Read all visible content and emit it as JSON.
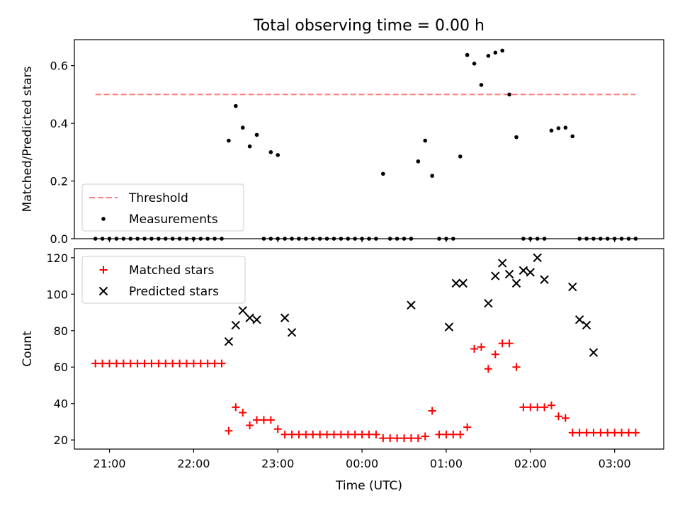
{
  "figure": {
    "title": "Total observing time = 0.00 h",
    "xlabel": "Time (UTC)",
    "colors": {
      "threshold": "#ff7f7f",
      "measurements": "#000000",
      "matched": "#ff0000",
      "predicted": "#000000"
    }
  },
  "chart_data": [
    {
      "type": "scatter",
      "panel": "top",
      "ylabel": "Matched/Predicted stars",
      "ylim": [
        0,
        0.69
      ],
      "yticks": [
        0.0,
        0.2,
        0.4,
        0.6
      ],
      "ytick_labels": [
        "0.0",
        "0.2",
        "0.4",
        "0.6"
      ],
      "xlim": [
        "20:35",
        "03:35"
      ],
      "xticks": [
        "21:00",
        "22:00",
        "23:00",
        "00:00",
        "01:00",
        "02:00",
        "03:00"
      ],
      "legend": {
        "placement": "lower-left",
        "entries": [
          "Threshold",
          "Measurements"
        ]
      },
      "threshold": {
        "name": "Threshold",
        "y": 0.5,
        "x": [
          "20:50",
          "03:15"
        ]
      },
      "series": [
        {
          "name": "Measurements",
          "x": [
            "20:50",
            "20:55",
            "21:00",
            "21:05",
            "21:10",
            "21:15",
            "21:20",
            "21:25",
            "21:30",
            "21:35",
            "21:40",
            "21:45",
            "21:50",
            "21:55",
            "22:00",
            "22:05",
            "22:10",
            "22:15",
            "22:20",
            "22:25",
            "22:30",
            "22:35",
            "22:40",
            "22:45",
            "22:50",
            "22:55",
            "23:00",
            "23:05",
            "23:10",
            "23:15",
            "23:20",
            "23:25",
            "23:30",
            "23:35",
            "23:40",
            "23:45",
            "23:50",
            "23:55",
            "00:00",
            "00:05",
            "00:10",
            "00:15",
            "00:20",
            "00:25",
            "00:30",
            "00:35",
            "00:40",
            "00:45",
            "00:50",
            "00:55",
            "01:00",
            "01:05",
            "01:10",
            "01:15",
            "01:20",
            "01:25",
            "01:30",
            "01:35",
            "01:40",
            "01:45",
            "01:50",
            "01:55",
            "02:00",
            "02:05",
            "02:10",
            "02:15",
            "02:20",
            "02:25",
            "02:30",
            "02:35",
            "02:40",
            "02:45",
            "02:50",
            "02:55",
            "03:00",
            "03:05",
            "03:10",
            "03:15",
            "22:55",
            "23:00"
          ],
          "y": [
            0,
            0,
            0,
            0,
            0,
            0,
            0,
            0,
            0,
            0,
            0,
            0,
            0,
            0,
            0,
            0,
            0,
            0,
            0,
            0.34,
            0.46,
            0.385,
            0.32,
            0.36,
            0,
            0.3,
            0.29,
            0,
            0,
            0,
            0,
            0,
            0,
            0,
            0,
            0,
            0,
            0,
            0,
            0,
            0,
            0.225,
            0,
            0,
            0,
            0,
            0.268,
            0.34,
            0.218,
            0,
            0,
            0,
            0.285,
            0.637,
            0.607,
            0.533,
            0.634,
            0.645,
            0.652,
            0.5,
            0.352,
            0,
            0,
            0,
            0,
            0.375,
            0.383,
            0.385,
            0.355,
            0,
            0,
            0,
            0,
            0,
            0,
            0,
            0,
            0,
            0,
            0
          ]
        }
      ]
    },
    {
      "type": "scatter",
      "panel": "bottom",
      "ylabel": "Count",
      "ylim": [
        15,
        125
      ],
      "yticks": [
        20,
        40,
        60,
        80,
        100,
        120
      ],
      "ytick_labels": [
        "20",
        "40",
        "60",
        "80",
        "100",
        "120"
      ],
      "xlim": [
        "20:35",
        "03:35"
      ],
      "xticks": [
        "21:00",
        "22:00",
        "23:00",
        "00:00",
        "01:00",
        "02:00",
        "03:00"
      ],
      "xtick_labels": [
        "21:00",
        "22:00",
        "23:00",
        "00:00",
        "01:00",
        "02:00",
        "03:00"
      ],
      "legend": {
        "placement": "upper-left",
        "entries": [
          "Matched stars",
          "Predicted stars"
        ]
      },
      "series": [
        {
          "name": "Matched stars",
          "x": [
            "20:50",
            "20:55",
            "21:00",
            "21:05",
            "21:10",
            "21:15",
            "21:20",
            "21:25",
            "21:30",
            "21:35",
            "21:40",
            "21:45",
            "21:50",
            "21:55",
            "22:00",
            "22:05",
            "22:10",
            "22:15",
            "22:20",
            "22:25",
            "22:30",
            "22:35",
            "22:40",
            "22:45",
            "22:50",
            "22:55",
            "23:00",
            "23:05",
            "23:10",
            "23:15",
            "23:20",
            "23:25",
            "23:30",
            "23:35",
            "23:40",
            "23:45",
            "23:50",
            "23:55",
            "00:00",
            "00:05",
            "00:10",
            "00:15",
            "00:20",
            "00:25",
            "00:30",
            "00:35",
            "00:40",
            "00:45",
            "00:50",
            "00:55",
            "01:00",
            "01:05",
            "01:10",
            "01:15",
            "01:20",
            "01:25",
            "01:30",
            "01:35",
            "01:40",
            "01:45",
            "01:50",
            "01:55",
            "02:00",
            "02:05",
            "02:10",
            "02:15",
            "02:20",
            "02:25",
            "02:30",
            "02:35",
            "02:40",
            "02:45",
            "02:50",
            "02:55",
            "03:00",
            "03:05",
            "03:10",
            "03:15"
          ],
          "y": [
            62,
            62,
            62,
            62,
            62,
            62,
            62,
            62,
            62,
            62,
            62,
            62,
            62,
            62,
            62,
            62,
            62,
            62,
            62,
            25,
            38,
            35,
            28,
            31,
            31,
            31,
            26,
            23,
            23,
            23,
            23,
            23,
            23,
            23,
            23,
            23,
            23,
            23,
            23,
            23,
            23,
            21,
            21,
            21,
            21,
            21,
            21,
            22,
            36,
            23,
            23,
            23,
            23,
            27,
            70,
            71,
            59,
            67,
            73,
            73,
            60,
            38,
            38,
            38,
            38,
            39,
            33,
            32,
            24,
            24,
            24,
            24,
            24,
            24,
            24,
            24,
            24,
            24
          ]
        },
        {
          "name": "Predicted stars",
          "x": [
            "22:25",
            "22:30",
            "22:35",
            "22:40",
            "22:45",
            "23:05",
            "23:10",
            "00:35",
            "01:02",
            "01:07",
            "01:12",
            "01:30",
            "01:35",
            "01:40",
            "01:45",
            "01:50",
            "01:55",
            "02:00",
            "02:05",
            "02:10",
            "02:30",
            "02:35",
            "02:40",
            "02:45"
          ],
          "y": [
            74,
            83,
            91,
            87,
            86,
            87,
            79,
            94,
            82,
            106,
            106,
            95,
            110,
            117,
            111,
            106,
            113,
            112,
            120,
            108,
            104,
            86,
            83,
            68
          ]
        }
      ]
    }
  ]
}
